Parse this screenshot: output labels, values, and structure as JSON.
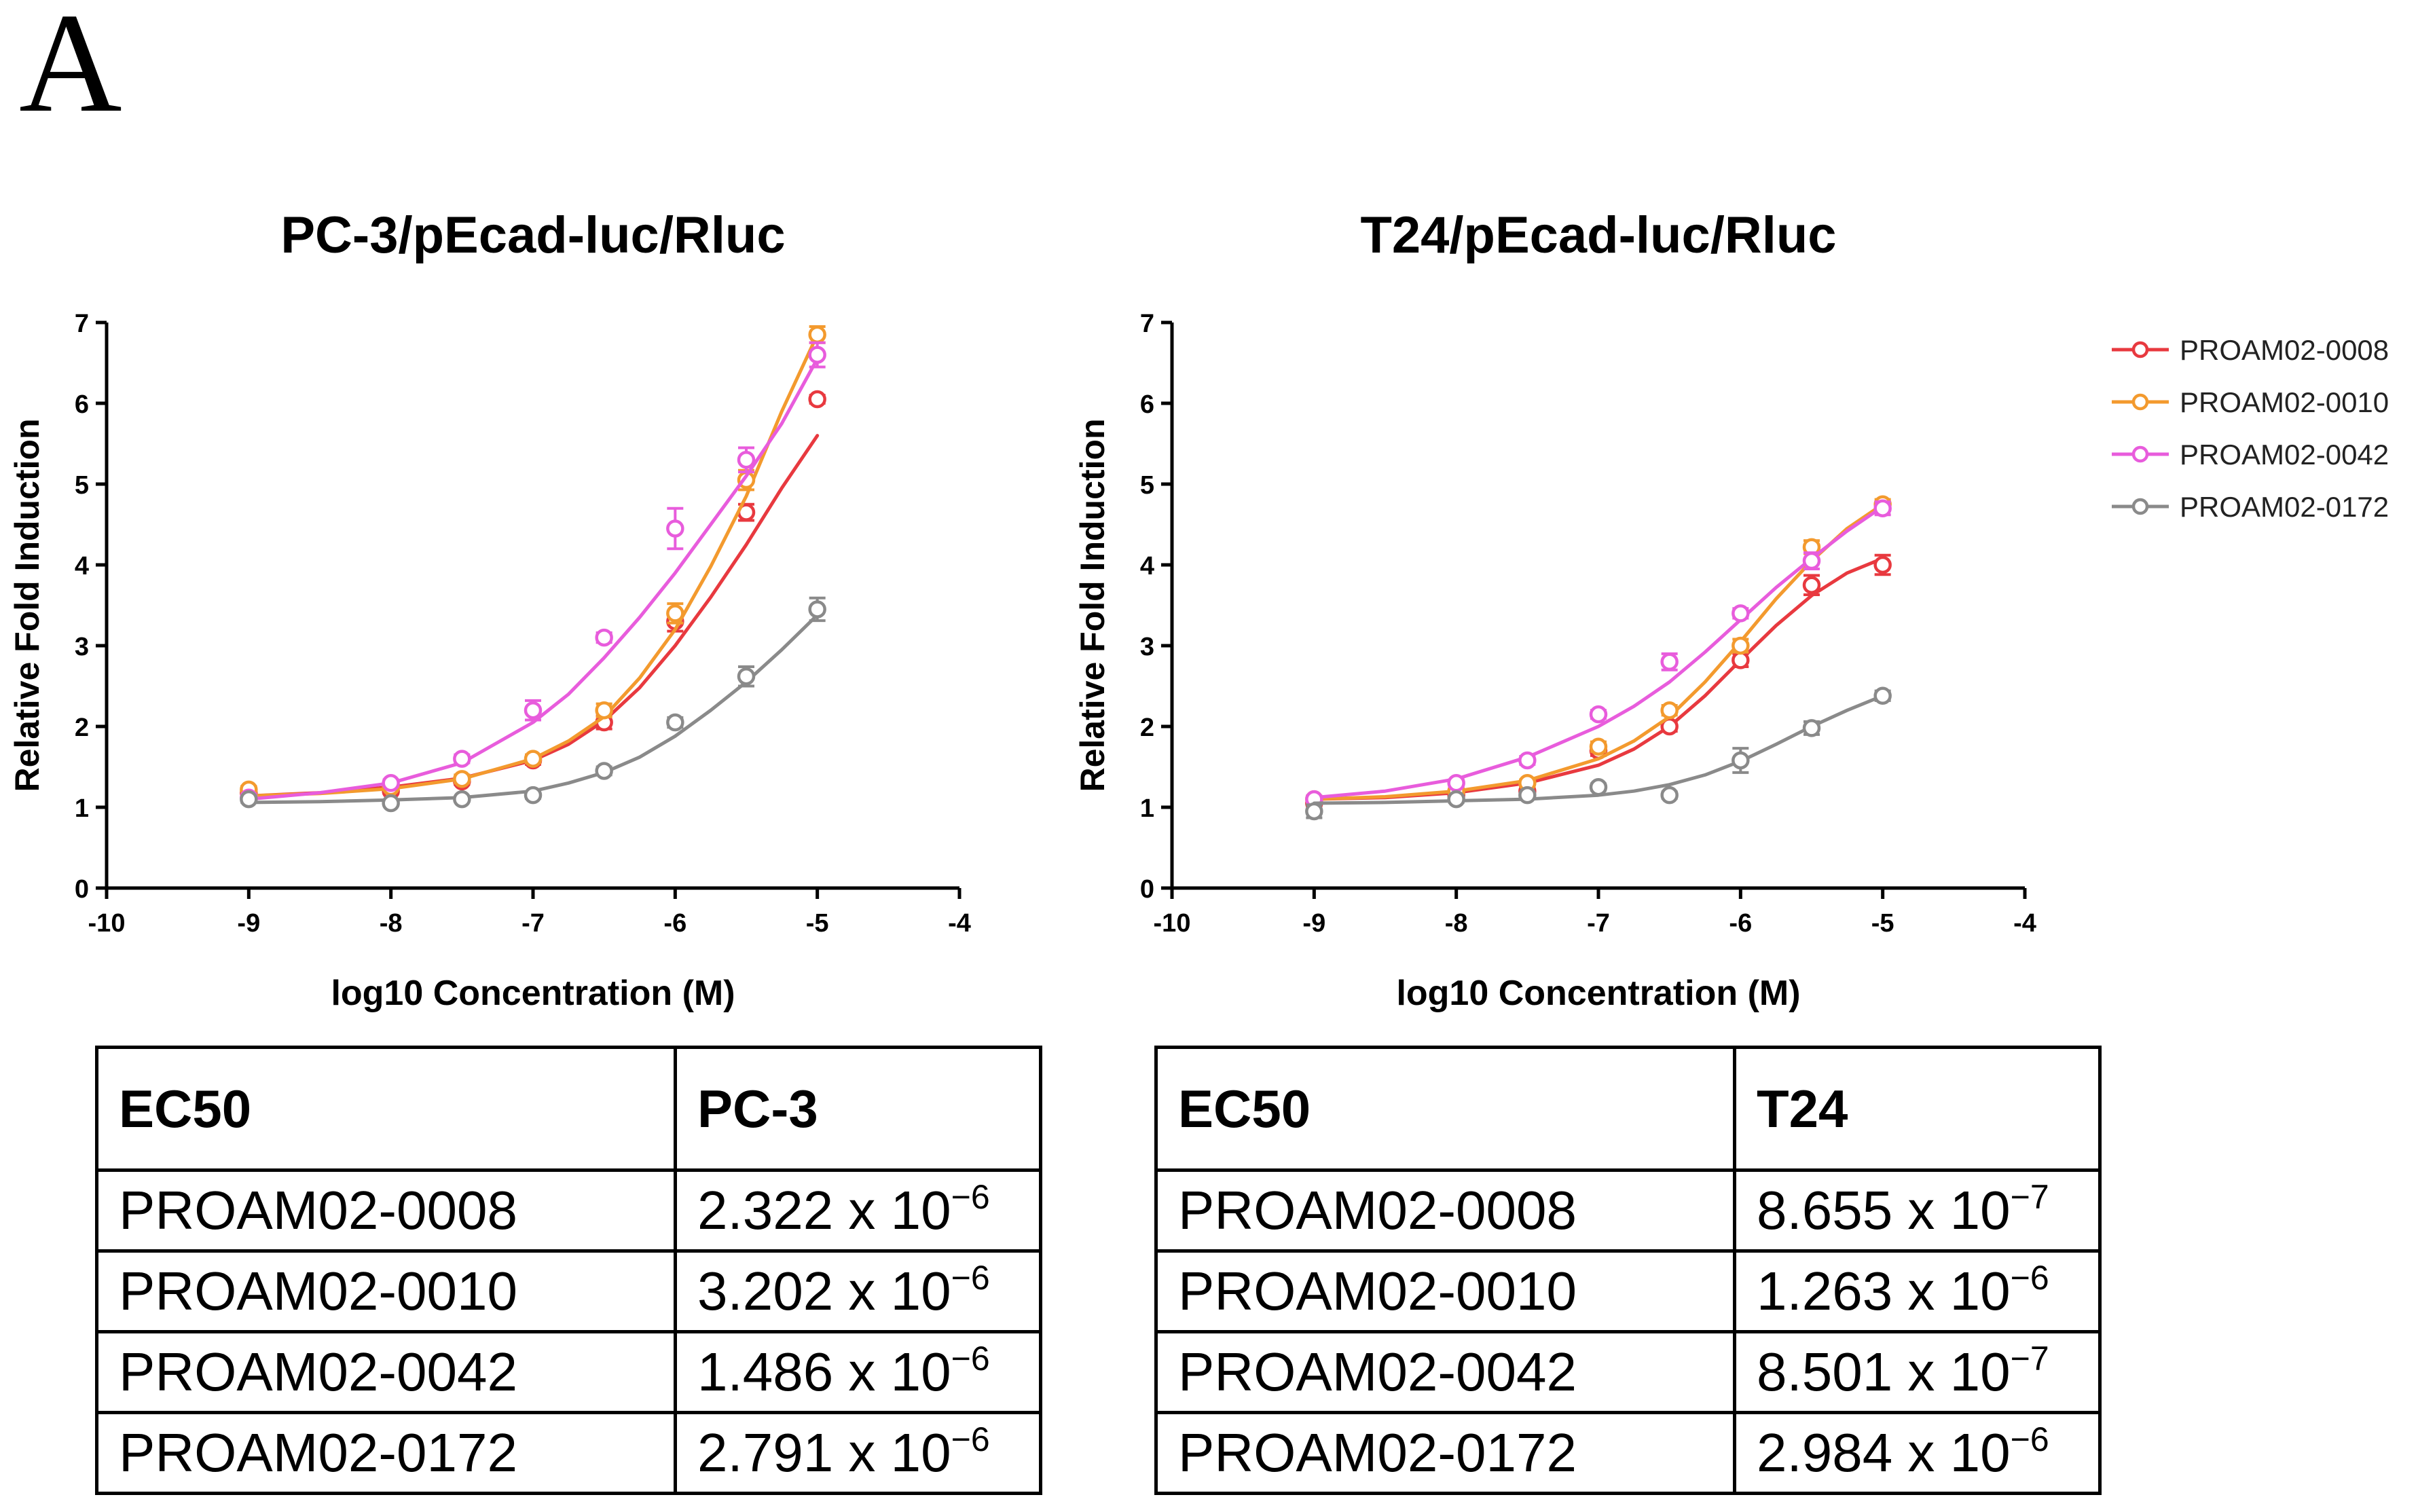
{
  "figure": {
    "panel_label": "A"
  },
  "chart_data": [
    {
      "type": "line",
      "title": "PC-3/pEcad-luc/Rluc",
      "xlabel": "log10 Concentration (M)",
      "ylabel": "Relative Fold Induction",
      "xlim": [
        -10,
        -4
      ],
      "ylim": [
        0,
        7
      ],
      "xticks": [
        -10,
        -9,
        -8,
        -7,
        -6,
        -5,
        -4
      ],
      "yticks": [
        0,
        1,
        2,
        3,
        4,
        5,
        6,
        7
      ],
      "legend": "none",
      "series": [
        {
          "name": "PROAM02-0008",
          "color": "#e8393f",
          "x": [
            -9,
            -8,
            -7.5,
            -7,
            -6.5,
            -6,
            -5.5,
            -5
          ],
          "y": [
            1.18,
            1.2,
            1.32,
            1.58,
            2.05,
            3.3,
            4.65,
            6.05
          ],
          "error": [
            0.04,
            0.03,
            0.04,
            0.05,
            0.08,
            0.12,
            0.1,
            0.05
          ],
          "fit": [
            [
              -9.0,
              1.14
            ],
            [
              -8.5,
              1.18
            ],
            [
              -8.0,
              1.25
            ],
            [
              -7.5,
              1.36
            ],
            [
              -7.0,
              1.58
            ],
            [
              -6.75,
              1.78
            ],
            [
              -6.5,
              2.07
            ],
            [
              -6.25,
              2.48
            ],
            [
              -6.0,
              3.0
            ],
            [
              -5.75,
              3.6
            ],
            [
              -5.5,
              4.25
            ],
            [
              -5.25,
              4.95
            ],
            [
              -5.0,
              5.6
            ]
          ]
        },
        {
          "name": "PROAM02-0010",
          "color": "#f39a2e",
          "x": [
            -9,
            -8,
            -7.5,
            -7,
            -6.5,
            -6,
            -5.5,
            -5
          ],
          "y": [
            1.22,
            1.25,
            1.35,
            1.6,
            2.2,
            3.4,
            5.05,
            6.85
          ],
          "error": [
            0.04,
            0.03,
            0.05,
            0.05,
            0.08,
            0.12,
            0.12,
            0.1
          ],
          "fit": [
            [
              -9.0,
              1.14
            ],
            [
              -8.5,
              1.17
            ],
            [
              -8.0,
              1.23
            ],
            [
              -7.5,
              1.35
            ],
            [
              -7.0,
              1.6
            ],
            [
              -6.75,
              1.82
            ],
            [
              -6.5,
              2.12
            ],
            [
              -6.25,
              2.6
            ],
            [
              -6.0,
              3.2
            ],
            [
              -5.75,
              3.98
            ],
            [
              -5.5,
              4.85
            ],
            [
              -5.25,
              5.9
            ],
            [
              -5.0,
              6.85
            ]
          ]
        },
        {
          "name": "PROAM02-0042",
          "color": "#e85cdc",
          "x": [
            -9,
            -8,
            -7.5,
            -7,
            -6.5,
            -6,
            -5.5,
            -5
          ],
          "y": [
            1.12,
            1.3,
            1.6,
            2.2,
            3.1,
            4.45,
            5.3,
            6.6
          ],
          "error": [
            0.04,
            0.04,
            0.05,
            0.12,
            0.06,
            0.25,
            0.15,
            0.15
          ],
          "fit": [
            [
              -9.0,
              1.1
            ],
            [
              -8.5,
              1.18
            ],
            [
              -8.0,
              1.3
            ],
            [
              -7.5,
              1.55
            ],
            [
              -7.0,
              2.05
            ],
            [
              -6.75,
              2.4
            ],
            [
              -6.5,
              2.85
            ],
            [
              -6.25,
              3.35
            ],
            [
              -6.0,
              3.9
            ],
            [
              -5.75,
              4.5
            ],
            [
              -5.5,
              5.1
            ],
            [
              -5.25,
              5.75
            ],
            [
              -5.0,
              6.55
            ]
          ]
        },
        {
          "name": "PROAM02-0172",
          "color": "#8a8a8a",
          "x": [
            -9,
            -8,
            -7.5,
            -7,
            -6.5,
            -6,
            -5.5,
            -5
          ],
          "y": [
            1.1,
            1.05,
            1.1,
            1.15,
            1.45,
            2.05,
            2.62,
            3.45
          ],
          "error": [
            0.04,
            0.03,
            0.03,
            0.04,
            0.05,
            0.06,
            0.12,
            0.14
          ],
          "fit": [
            [
              -9.0,
              1.06
            ],
            [
              -8.5,
              1.07
            ],
            [
              -8.0,
              1.09
            ],
            [
              -7.5,
              1.12
            ],
            [
              -7.0,
              1.2
            ],
            [
              -6.75,
              1.3
            ],
            [
              -6.5,
              1.43
            ],
            [
              -6.25,
              1.62
            ],
            [
              -6.0,
              1.88
            ],
            [
              -5.75,
              2.2
            ],
            [
              -5.5,
              2.55
            ],
            [
              -5.25,
              2.95
            ],
            [
              -5.0,
              3.38
            ]
          ]
        }
      ]
    },
    {
      "type": "line",
      "title": "T24/pEcad-luc/Rluc",
      "xlabel": "log10 Concentration (M)",
      "ylabel": "Relative Fold Induction",
      "xlim": [
        -10,
        -4
      ],
      "ylim": [
        0,
        7
      ],
      "xticks": [
        -10,
        -9,
        -8,
        -7,
        -6,
        -5,
        -4
      ],
      "yticks": [
        0,
        1,
        2,
        3,
        4,
        5,
        6,
        7
      ],
      "legend": "top-right",
      "series": [
        {
          "name": "PROAM02-0008",
          "color": "#e8393f",
          "x": [
            -9,
            -8,
            -7.5,
            -7,
            -6.5,
            -6,
            -5.5,
            -5
          ],
          "y": [
            1.05,
            1.15,
            1.2,
            1.7,
            2.0,
            2.82,
            3.75,
            4.0
          ],
          "error": [
            0.04,
            0.03,
            0.04,
            0.06,
            0.06,
            0.08,
            0.12,
            0.12
          ],
          "fit": [
            [
              -9.0,
              1.1
            ],
            [
              -8.5,
              1.12
            ],
            [
              -8.0,
              1.18
            ],
            [
              -7.5,
              1.3
            ],
            [
              -7.0,
              1.52
            ],
            [
              -6.75,
              1.72
            ],
            [
              -6.5,
              2.0
            ],
            [
              -6.25,
              2.38
            ],
            [
              -6.0,
              2.82
            ],
            [
              -5.75,
              3.25
            ],
            [
              -5.5,
              3.62
            ],
            [
              -5.25,
              3.9
            ],
            [
              -5.0,
              4.08
            ]
          ]
        },
        {
          "name": "PROAM02-0010",
          "color": "#f39a2e",
          "x": [
            -9,
            -8,
            -7.5,
            -7,
            -6.5,
            -6,
            -5.5,
            -5
          ],
          "y": [
            1.1,
            1.2,
            1.3,
            1.75,
            2.2,
            3.0,
            4.22,
            4.75
          ],
          "error": [
            0.04,
            0.03,
            0.04,
            0.06,
            0.06,
            0.08,
            0.08,
            0.06
          ],
          "fit": [
            [
              -9.0,
              1.1
            ],
            [
              -8.5,
              1.13
            ],
            [
              -8.0,
              1.2
            ],
            [
              -7.5,
              1.33
            ],
            [
              -7.0,
              1.6
            ],
            [
              -6.75,
              1.82
            ],
            [
              -6.5,
              2.12
            ],
            [
              -6.25,
              2.55
            ],
            [
              -6.0,
              3.05
            ],
            [
              -5.75,
              3.58
            ],
            [
              -5.5,
              4.05
            ],
            [
              -5.25,
              4.45
            ],
            [
              -5.0,
              4.75
            ]
          ]
        },
        {
          "name": "PROAM02-0042",
          "color": "#e85cdc",
          "x": [
            -9,
            -8,
            -7.5,
            -7,
            -6.5,
            -6,
            -5.5,
            -5
          ],
          "y": [
            1.1,
            1.3,
            1.58,
            2.15,
            2.8,
            3.4,
            4.05,
            4.7
          ],
          "error": [
            0.04,
            0.04,
            0.05,
            0.05,
            0.1,
            0.06,
            0.1,
            0.08
          ],
          "fit": [
            [
              -9.0,
              1.12
            ],
            [
              -8.5,
              1.2
            ],
            [
              -8.0,
              1.35
            ],
            [
              -7.5,
              1.62
            ],
            [
              -7.0,
              2.0
            ],
            [
              -6.75,
              2.25
            ],
            [
              -6.5,
              2.55
            ],
            [
              -6.25,
              2.92
            ],
            [
              -6.0,
              3.32
            ],
            [
              -5.75,
              3.72
            ],
            [
              -5.5,
              4.08
            ],
            [
              -5.25,
              4.42
            ],
            [
              -5.0,
              4.72
            ]
          ]
        },
        {
          "name": "PROAM02-0172",
          "color": "#8a8a8a",
          "x": [
            -9,
            -8,
            -7.5,
            -7,
            -6.5,
            -6,
            -5.5,
            -5
          ],
          "y": [
            0.95,
            1.1,
            1.15,
            1.25,
            1.15,
            1.58,
            1.98,
            2.38
          ],
          "error": [
            0.08,
            0.04,
            0.03,
            0.04,
            0.04,
            0.15,
            0.08,
            0.06
          ],
          "fit": [
            [
              -9.0,
              1.05
            ],
            [
              -8.5,
              1.06
            ],
            [
              -8.0,
              1.08
            ],
            [
              -7.5,
              1.1
            ],
            [
              -7.0,
              1.15
            ],
            [
              -6.75,
              1.2
            ],
            [
              -6.5,
              1.28
            ],
            [
              -6.25,
              1.4
            ],
            [
              -6.0,
              1.57
            ],
            [
              -5.75,
              1.78
            ],
            [
              -5.5,
              2.0
            ],
            [
              -5.25,
              2.2
            ],
            [
              -5.0,
              2.38
            ]
          ]
        }
      ]
    }
  ],
  "tables": {
    "pc3": {
      "headers": [
        "EC50",
        "PC-3"
      ],
      "rows": [
        {
          "compound": "PROAM02-0008",
          "mantissa": "2.322 x 10",
          "exponent": "−6"
        },
        {
          "compound": "PROAM02-0010",
          "mantissa": "3.202 x 10",
          "exponent": "−6"
        },
        {
          "compound": "PROAM02-0042",
          "mantissa": "1.486 x 10",
          "exponent": "−6"
        },
        {
          "compound": "PROAM02-0172",
          "mantissa": "2.791 x 10",
          "exponent": "−6"
        }
      ]
    },
    "t24": {
      "headers": [
        "EC50",
        "T24"
      ],
      "rows": [
        {
          "compound": "PROAM02-0008",
          "mantissa": "8.655 x 10",
          "exponent": "−7"
        },
        {
          "compound": "PROAM02-0010",
          "mantissa": "1.263 x 10",
          "exponent": "−6"
        },
        {
          "compound": "PROAM02-0042",
          "mantissa": "8.501 x 10",
          "exponent": "−7"
        },
        {
          "compound": "PROAM02-0172",
          "mantissa": "2.984 x 10",
          "exponent": "−6"
        }
      ]
    }
  }
}
